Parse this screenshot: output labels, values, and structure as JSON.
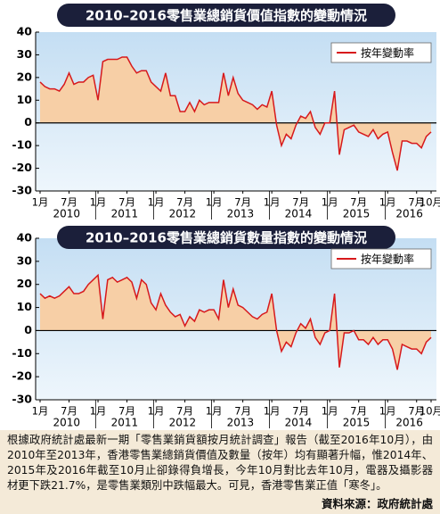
{
  "chart_data": [
    {
      "type": "line",
      "title": "2010–2016零售業總銷貨價值指數的變動情況",
      "categories": [
        "1月",
        null,
        null,
        null,
        null,
        null,
        "7月",
        null,
        null,
        null,
        null,
        null,
        "1月",
        null,
        null,
        null,
        null,
        null,
        "7月",
        null,
        null,
        null,
        null,
        null,
        "1月",
        null,
        null,
        null,
        null,
        null,
        "7月",
        null,
        null,
        null,
        null,
        null,
        "1月",
        null,
        null,
        null,
        null,
        null,
        "7月",
        null,
        null,
        null,
        null,
        null,
        "1月",
        null,
        null,
        null,
        null,
        null,
        "7月",
        null,
        null,
        null,
        null,
        null,
        "1月",
        null,
        null,
        null,
        null,
        null,
        "7月",
        null,
        null,
        null,
        null,
        null,
        "1月",
        null,
        null,
        null,
        null,
        null,
        "7月",
        null,
        null,
        "10月"
      ],
      "x_groups": [
        "2010",
        "2011",
        "2012",
        "2013",
        "2014",
        "2015",
        "2016"
      ],
      "series": [
        {
          "name": "按年變動率",
          "color": "#d7191c",
          "fill": "#f7cfa6",
          "values": [
            18,
            16,
            15,
            15,
            14,
            17,
            22,
            17,
            18,
            18,
            20,
            21,
            10,
            27,
            28,
            28,
            28,
            29,
            29,
            25,
            22,
            23,
            23,
            18,
            16,
            14,
            22,
            12,
            12,
            5,
            5,
            9,
            5,
            10,
            8,
            9,
            9,
            9,
            22,
            12,
            20,
            13,
            10,
            9,
            8,
            6,
            8,
            7,
            14,
            -1,
            -10,
            -5,
            -7,
            -1,
            3,
            2,
            5,
            -2,
            -5,
            0,
            0,
            14,
            -14,
            -3,
            -2,
            -1,
            -4,
            -5,
            -6,
            -3,
            -7,
            -5,
            -4,
            -13,
            -21,
            -8,
            -8,
            -9,
            -9,
            -11,
            -6,
            -4
          ]
        }
      ],
      "ylim": [
        -30,
        40
      ],
      "yticks": [
        -30,
        -20,
        -10,
        0,
        10,
        20,
        30,
        40
      ],
      "legend": "upper right"
    },
    {
      "type": "line",
      "title": "2010–2016零售業總銷貨數量指數的變動情況",
      "categories": [
        "1月",
        null,
        null,
        null,
        null,
        null,
        "7月",
        null,
        null,
        null,
        null,
        null,
        "1月",
        null,
        null,
        null,
        null,
        null,
        "7月",
        null,
        null,
        null,
        null,
        null,
        "1月",
        null,
        null,
        null,
        null,
        null,
        "7月",
        null,
        null,
        null,
        null,
        null,
        "1月",
        null,
        null,
        null,
        null,
        null,
        "7月",
        null,
        null,
        null,
        null,
        null,
        "1月",
        null,
        null,
        null,
        null,
        null,
        "7月",
        null,
        null,
        null,
        null,
        null,
        "1月",
        null,
        null,
        null,
        null,
        null,
        "7月",
        null,
        null,
        null,
        null,
        null,
        "1月",
        null,
        null,
        null,
        null,
        null,
        "7月",
        null,
        null,
        "10月"
      ],
      "x_groups": [
        "2010",
        "2011",
        "2012",
        "2013",
        "2014",
        "2015",
        "2016"
      ],
      "series": [
        {
          "name": "按年變動率",
          "color": "#d7191c",
          "fill": "#f7cfa6",
          "values": [
            16,
            14,
            15,
            14,
            15,
            17,
            19,
            16,
            16,
            17,
            20,
            22,
            24,
            5,
            22,
            23,
            21,
            22,
            23,
            21,
            14,
            22,
            20,
            12,
            9,
            16,
            11,
            8,
            6,
            7,
            2,
            6,
            4,
            9,
            8,
            9,
            9,
            5,
            22,
            10,
            18,
            11,
            10,
            8,
            6,
            5,
            7,
            8,
            16,
            0,
            -9,
            -5,
            -7,
            -1,
            3,
            1,
            5,
            -3,
            -6,
            -1,
            0,
            16,
            -16,
            -1,
            -1,
            0,
            -4,
            -4,
            -6,
            -3,
            -6,
            -4,
            -4,
            -8,
            -17,
            -6,
            -7,
            -8,
            -8,
            -10,
            -5,
            -3
          ]
        }
      ],
      "ylim": [
        -30,
        40
      ],
      "yticks": [
        -30,
        -20,
        -10,
        0,
        10,
        20,
        30,
        40
      ],
      "legend": "upper right"
    }
  ],
  "note": "根據政府統計處最新一期「零售業銷貨額按月統計調查」報告（截至2016年10月），由2010年至2013年，香港零售業總銷貨價值及數量（按年）均有顯著升幅，惟2014年、2015年及2016年截至10月止卻錄得負增長，今年10月對比去年10月，電器及攝影器材更下跌21.7%，是零售業類別中跌幅最大。可見，香港零售業正值「寒冬」。",
  "source": "資料來源：政府統計處"
}
